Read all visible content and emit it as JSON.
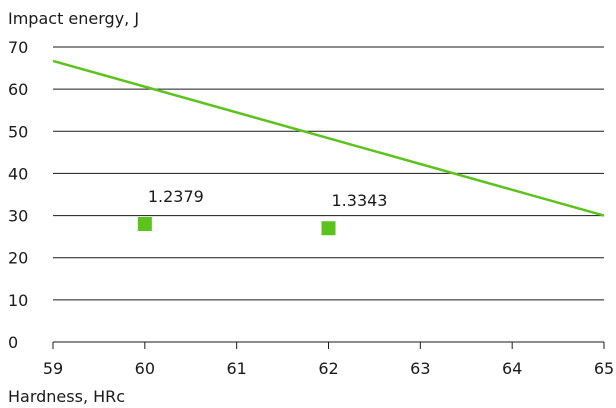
{
  "chart_data": {
    "type": "scatter",
    "title": "",
    "ylabel": "Impact energy, J",
    "xlabel": "Hardness, HRc",
    "xlim": [
      59,
      65
    ],
    "ylim": [
      0,
      70
    ],
    "x_ticks": [
      59,
      60,
      61,
      62,
      63,
      64,
      65
    ],
    "y_ticks": [
      0,
      10,
      20,
      30,
      40,
      50,
      60,
      70
    ],
    "grid": "horizontal",
    "colors": {
      "series": "#5cc21c",
      "grid": "#1a1a1a"
    },
    "series": [
      {
        "type": "line",
        "x": [
          59,
          65
        ],
        "y": [
          66.7,
          30
        ]
      },
      {
        "type": "scatter",
        "marker": "square",
        "points": [
          {
            "x": 60,
            "y": 28,
            "label": "1.2379"
          },
          {
            "x": 62,
            "y": 27,
            "label": "1.3343"
          }
        ]
      }
    ]
  }
}
